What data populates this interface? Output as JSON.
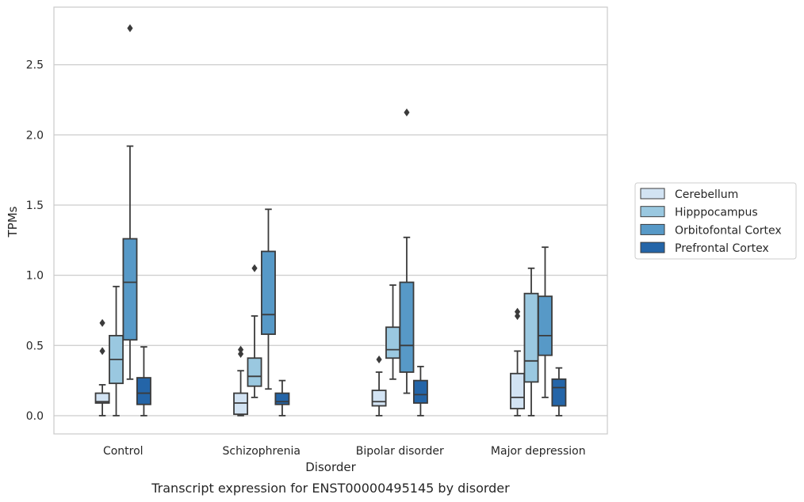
{
  "chart_data": {
    "type": "box",
    "title": "",
    "caption": "Transcript expression for ENST00000495145 by disorder",
    "xlabel": "Disorder",
    "ylabel": "TPMs",
    "ylim": [
      -0.13,
      2.91
    ],
    "yticks": [
      "0.0",
      "0.5",
      "1.0",
      "1.5",
      "2.0",
      "2.5"
    ],
    "grid": "horizontal",
    "legend_position": "right",
    "categories": [
      "Control",
      "Schizophrenia",
      "Bipolar disorder",
      "Major depression"
    ],
    "series": [
      {
        "name": "Cerebellum",
        "color": "#d2e3f3",
        "boxes": [
          {
            "whislo": 0.0,
            "q1": 0.09,
            "med": 0.1,
            "q3": 0.16,
            "whishi": 0.22,
            "fliers": [
              0.46,
              0.66
            ]
          },
          {
            "whislo": 0.0,
            "q1": 0.01,
            "med": 0.09,
            "q3": 0.16,
            "whishi": 0.32,
            "fliers": [
              0.44,
              0.47
            ]
          },
          {
            "whislo": 0.0,
            "q1": 0.07,
            "med": 0.1,
            "q3": 0.18,
            "whishi": 0.31,
            "fliers": [
              0.4
            ]
          },
          {
            "whislo": 0.0,
            "q1": 0.05,
            "med": 0.13,
            "q3": 0.3,
            "whishi": 0.46,
            "fliers": [
              0.71,
              0.74
            ]
          }
        ]
      },
      {
        "name": "Hipppocampus",
        "color": "#9ac8e0",
        "boxes": [
          {
            "whislo": 0.0,
            "q1": 0.23,
            "med": 0.4,
            "q3": 0.57,
            "whishi": 0.92,
            "fliers": []
          },
          {
            "whislo": 0.13,
            "q1": 0.21,
            "med": 0.28,
            "q3": 0.41,
            "whishi": 0.71,
            "fliers": [
              1.05
            ]
          },
          {
            "whislo": 0.26,
            "q1": 0.41,
            "med": 0.47,
            "q3": 0.63,
            "whishi": 0.93,
            "fliers": []
          },
          {
            "whislo": 0.0,
            "q1": 0.24,
            "med": 0.39,
            "q3": 0.87,
            "whishi": 1.05,
            "fliers": []
          }
        ]
      },
      {
        "name": "Orbitofontal Cortex",
        "color": "#5799c7",
        "boxes": [
          {
            "whislo": 0.26,
            "q1": 0.54,
            "med": 0.95,
            "q3": 1.26,
            "whishi": 1.92,
            "fliers": [
              2.76
            ]
          },
          {
            "whislo": 0.19,
            "q1": 0.58,
            "med": 0.72,
            "q3": 1.17,
            "whishi": 1.47,
            "fliers": []
          },
          {
            "whislo": 0.16,
            "q1": 0.31,
            "med": 0.5,
            "q3": 0.95,
            "whishi": 1.27,
            "fliers": [
              2.16
            ]
          },
          {
            "whislo": 0.13,
            "q1": 0.43,
            "med": 0.57,
            "q3": 0.85,
            "whishi": 1.2,
            "fliers": []
          }
        ]
      },
      {
        "name": "Prefrontal Cortex",
        "color": "#2465a8",
        "boxes": [
          {
            "whislo": 0.0,
            "q1": 0.08,
            "med": 0.16,
            "q3": 0.27,
            "whishi": 0.49,
            "fliers": []
          },
          {
            "whislo": 0.0,
            "q1": 0.08,
            "med": 0.1,
            "q3": 0.16,
            "whishi": 0.25,
            "fliers": []
          },
          {
            "whislo": 0.0,
            "q1": 0.09,
            "med": 0.15,
            "q3": 0.25,
            "whishi": 0.35,
            "fliers": []
          },
          {
            "whislo": 0.0,
            "q1": 0.07,
            "med": 0.2,
            "q3": 0.26,
            "whishi": 0.34,
            "fliers": []
          }
        ]
      }
    ]
  }
}
